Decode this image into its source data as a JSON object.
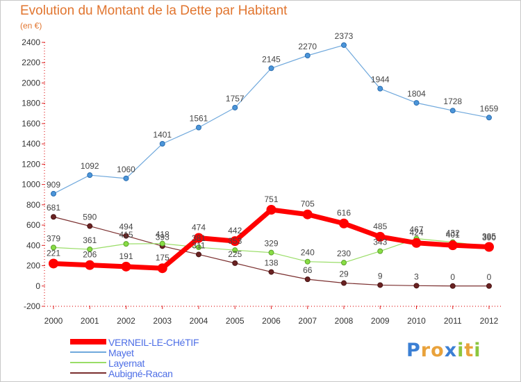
{
  "header": {
    "title": "Evolution du Montant de la Dette par Habitant",
    "subtitle": "(en €)"
  },
  "chart_data": {
    "type": "line",
    "title": "Evolution du Montant de la Dette par Habitant",
    "subtitle": "(en €)",
    "xlabel": "",
    "ylabel": "",
    "x": [
      "2000",
      "2001",
      "2002",
      "2003",
      "2004",
      "2005",
      "2006",
      "2007",
      "2008",
      "2009",
      "2010",
      "2011",
      "2012"
    ],
    "ylim": [
      -200,
      2400
    ],
    "yticks": [
      -200,
      0,
      200,
      400,
      600,
      800,
      1000,
      1200,
      1400,
      1600,
      1800,
      2000,
      2200,
      2400
    ],
    "grid": false,
    "legend_position": "bottom-left",
    "series": [
      {
        "name": "VERNEIL-LE-CHéTIF",
        "color": "#ff0000",
        "values": [
          221,
          206,
          191,
          175,
          474,
          442,
          751,
          705,
          616,
          485,
          424,
          401,
          385
        ]
      },
      {
        "name": "Mayet",
        "color": "#6fa8dc",
        "values": [
          909,
          1092,
          1060,
          1401,
          1561,
          1757,
          2145,
          2270,
          2373,
          1944,
          1804,
          1728,
          1659
        ]
      },
      {
        "name": "Layernat",
        "color": "#99dd66",
        "values": [
          379,
          361,
          415,
          418,
          381,
          353,
          329,
          240,
          230,
          343,
          467,
          432,
          390
        ]
      },
      {
        "name": "Aubigné-Racan",
        "color": "#7a2e2e",
        "values": [
          681,
          590,
          494,
          393,
          311,
          225,
          138,
          66,
          29,
          9,
          3,
          0,
          0
        ]
      }
    ]
  },
  "logo": {
    "letters": [
      "P",
      "r",
      "o",
      "x",
      "i",
      "t",
      "i"
    ],
    "colors": [
      "#3b7fd4",
      "#e9a23b",
      "#e9a23b",
      "#3b7fd4",
      "#8cc63f",
      "#e9a23b",
      "#8cc63f"
    ]
  }
}
